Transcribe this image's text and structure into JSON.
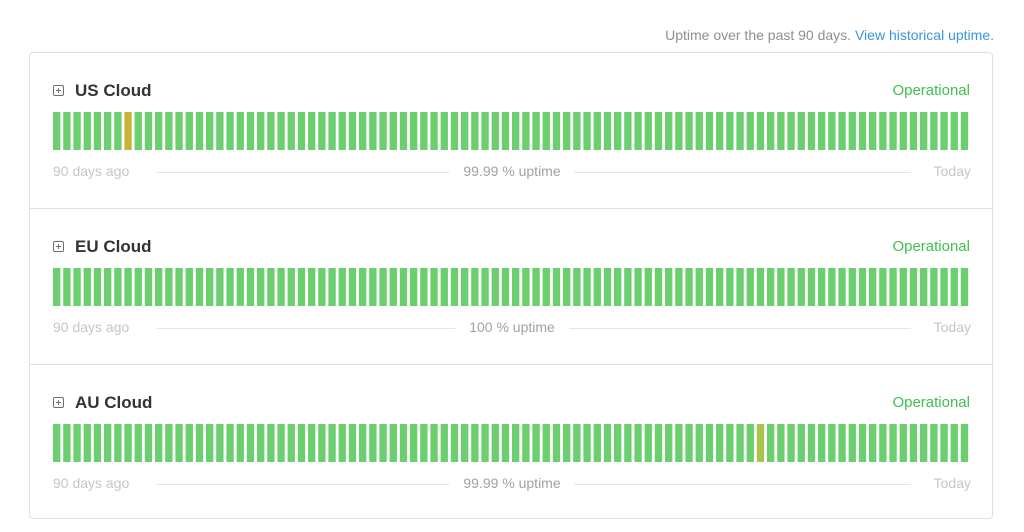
{
  "header": {
    "text": "Uptime over the past 90 days.",
    "link": "View historical uptime."
  },
  "colors": {
    "operational": "#6bcf6f",
    "minor": "#c9b43a",
    "degraded": "#a9c44a",
    "status_text": "#3fbf4f"
  },
  "components": [
    {
      "name": "US Cloud",
      "status": "Operational",
      "uptime": "99.99 % uptime",
      "start_label": "90 days ago",
      "end_label": "Today",
      "days": 90,
      "incidents": [
        {
          "day": 7,
          "level": "minor"
        }
      ]
    },
    {
      "name": "EU Cloud",
      "status": "Operational",
      "uptime": "100 % uptime",
      "start_label": "90 days ago",
      "end_label": "Today",
      "days": 90,
      "incidents": []
    },
    {
      "name": "AU Cloud",
      "status": "Operational",
      "uptime": "99.99 % uptime",
      "start_label": "90 days ago",
      "end_label": "Today",
      "days": 90,
      "incidents": [
        {
          "day": 69,
          "level": "degraded"
        }
      ]
    }
  ]
}
